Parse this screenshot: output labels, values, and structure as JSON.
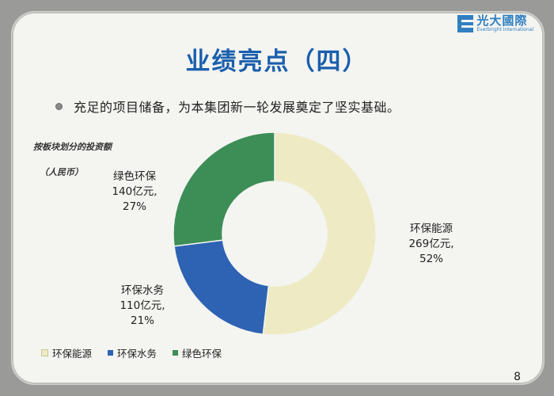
{
  "logo": {
    "cn": "光大國際",
    "en": "Everbright International"
  },
  "title": "业绩亮点（四）",
  "bullet": "充足的项目储备，为本集团新一轮发展奠定了坚实基础。",
  "chart_subtitle": "按板块划分的投资额",
  "chart_unit": "（人民币）",
  "page_number": "8",
  "colors": {
    "title": "#1a5fad",
    "env_energy": "#eeebc4",
    "env_water": "#2d63b2",
    "green_env": "#3c8e56"
  },
  "chart_data": {
    "type": "pie",
    "donut": true,
    "title": "按板块划分的投资额",
    "unit": "人民币",
    "legend_position": "bottom",
    "slices": [
      {
        "name": "环保能源",
        "value": 269,
        "value_label": "269亿元,",
        "percent": 52,
        "percent_label": "52%",
        "color": "#eeebc4"
      },
      {
        "name": "环保水务",
        "value": 110,
        "value_label": "110亿元,",
        "percent": 21,
        "percent_label": "21%",
        "color": "#2d63b2"
      },
      {
        "name": "绿色环保",
        "value": 140,
        "value_label": "140亿元,",
        "percent": 27,
        "percent_label": "27%",
        "color": "#3c8e56"
      }
    ]
  }
}
